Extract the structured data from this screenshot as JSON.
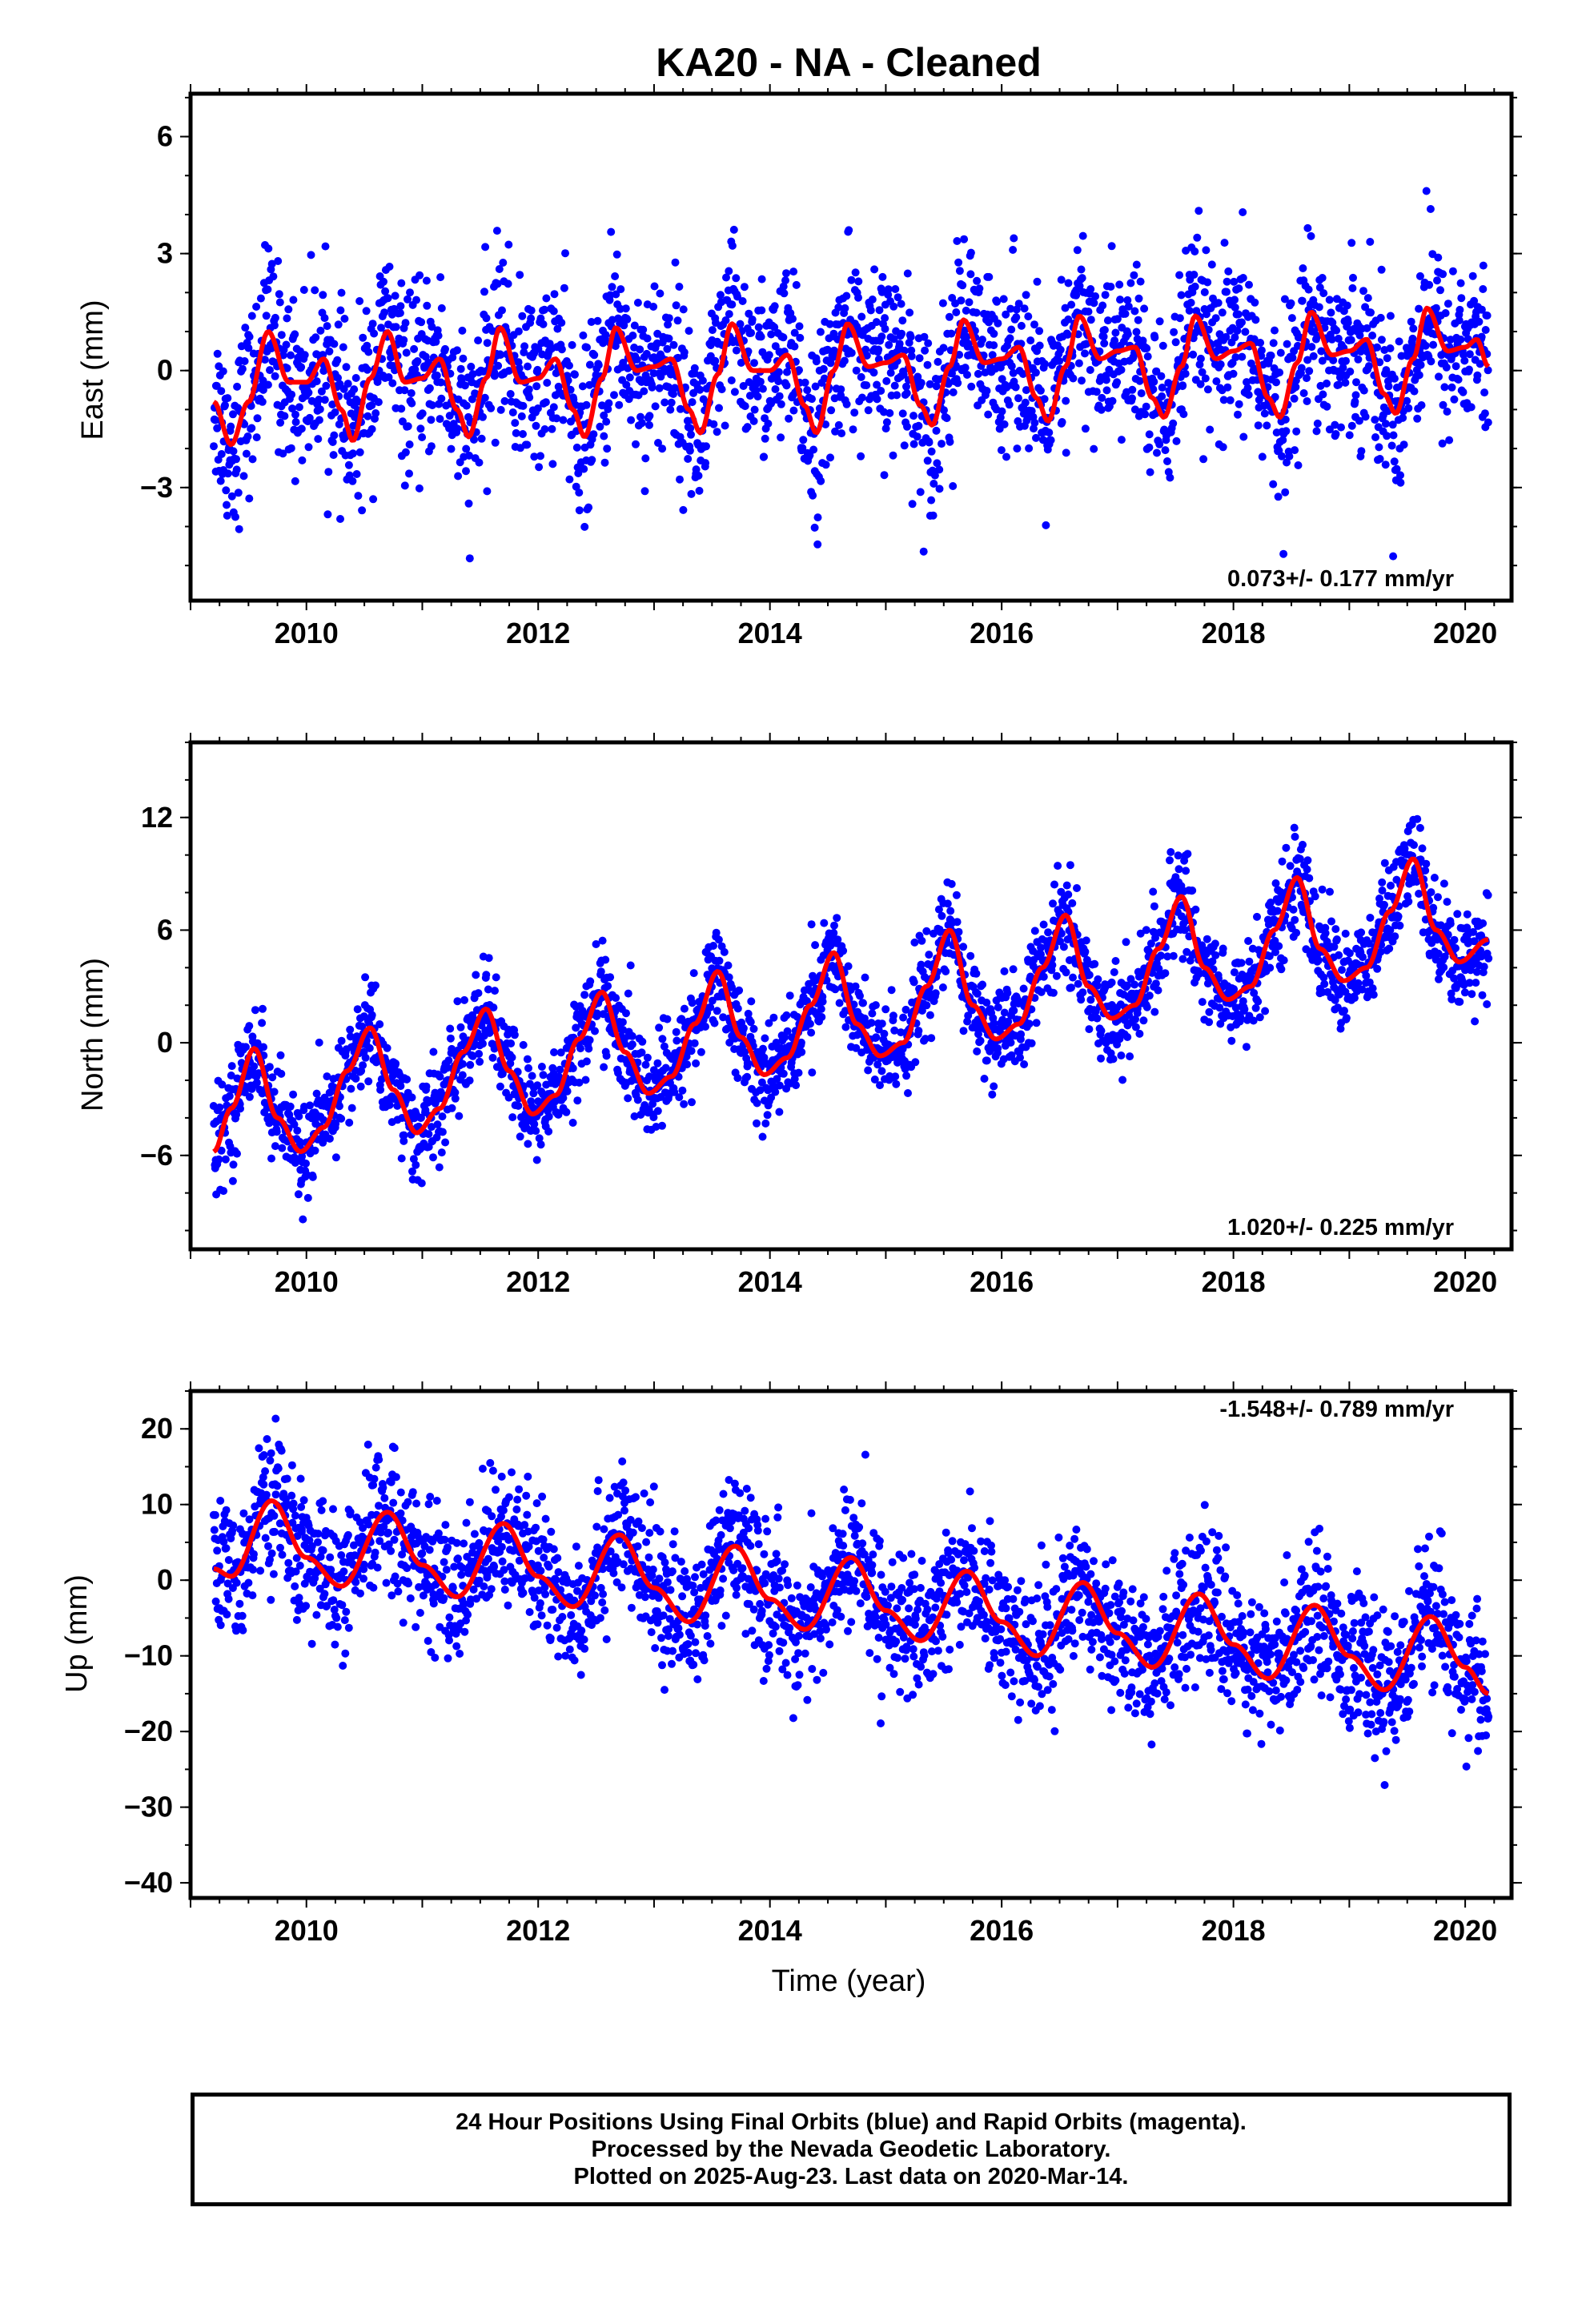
{
  "title": "KA20  - NA - Cleaned",
  "x_axis_label": "Time (year)",
  "footer": {
    "line1": "24 Hour Positions Using Final Orbits (blue) and Rapid Orbits (magenta).",
    "line2": "Processed by the Nevada Geodetic Laboratory.",
    "line3": "Plotted on 2025-Aug-23. Last data on 2020-Mar-14."
  },
  "colors": {
    "points": "#0000ff",
    "model": "#ff0000",
    "axes": "#000000"
  },
  "chart_data": [
    {
      "type": "scatter",
      "ylabel": "East (mm)",
      "rate_text": "0.073+/- 0.177 mm/yr",
      "rate_placement": "bottom-right",
      "xlim": [
        2009.0,
        2020.4
      ],
      "ylim": [
        -5.9,
        7.1
      ],
      "x_ticks": [
        2010,
        2012,
        2014,
        2016,
        2018,
        2020
      ],
      "y_ticks": [
        -3,
        0,
        3,
        6
      ],
      "grid": false,
      "series": [
        {
          "kind": "points",
          "start": 2009.2,
          "end": 2020.2,
          "trend": [
            0.0,
            0.0
          ],
          "seasonal_amp": 1.5,
          "seasonal_phase_peak": 2009.67,
          "scatter": 1.1
        },
        {
          "kind": "model",
          "knots": [
            [
              2009.2,
              -0.8
            ],
            [
              2009.35,
              -1.9
            ],
            [
              2009.5,
              -0.8
            ],
            [
              2009.67,
              1.0
            ],
            [
              2009.85,
              -0.3
            ],
            [
              2010.0,
              -0.3
            ],
            [
              2010.15,
              0.3
            ],
            [
              2010.3,
              -1.0
            ],
            [
              2010.4,
              -1.8
            ],
            [
              2010.55,
              -0.2
            ],
            [
              2010.7,
              1.0
            ],
            [
              2010.85,
              -0.3
            ],
            [
              2011.0,
              -0.2
            ],
            [
              2011.15,
              0.3
            ],
            [
              2011.3,
              -1.0
            ],
            [
              2011.4,
              -1.7
            ],
            [
              2011.55,
              -0.2
            ],
            [
              2011.67,
              1.1
            ],
            [
              2011.85,
              -0.3
            ],
            [
              2012.0,
              -0.2
            ],
            [
              2012.15,
              0.3
            ],
            [
              2012.3,
              -1.0
            ],
            [
              2012.4,
              -1.7
            ],
            [
              2012.55,
              -0.2
            ],
            [
              2012.67,
              1.1
            ],
            [
              2012.85,
              0.0
            ],
            [
              2013.0,
              0.1
            ],
            [
              2013.15,
              0.3
            ],
            [
              2013.3,
              -1.0
            ],
            [
              2013.4,
              -1.6
            ],
            [
              2013.55,
              -0.1
            ],
            [
              2013.67,
              1.2
            ],
            [
              2013.85,
              0.0
            ],
            [
              2014.0,
              0.0
            ],
            [
              2014.15,
              0.4
            ],
            [
              2014.3,
              -0.9
            ],
            [
              2014.4,
              -1.6
            ],
            [
              2014.55,
              0.0
            ],
            [
              2014.67,
              1.2
            ],
            [
              2014.85,
              0.1
            ],
            [
              2015.0,
              0.2
            ],
            [
              2015.15,
              0.4
            ],
            [
              2015.3,
              -0.9
            ],
            [
              2015.4,
              -1.4
            ],
            [
              2015.55,
              0.1
            ],
            [
              2015.67,
              1.3
            ],
            [
              2015.85,
              0.2
            ],
            [
              2016.0,
              0.3
            ],
            [
              2016.15,
              0.6
            ],
            [
              2016.3,
              -0.7
            ],
            [
              2016.4,
              -1.3
            ],
            [
              2016.55,
              0.1
            ],
            [
              2016.67,
              1.4
            ],
            [
              2016.85,
              0.3
            ],
            [
              2017.0,
              0.5
            ],
            [
              2017.15,
              0.6
            ],
            [
              2017.3,
              -0.7
            ],
            [
              2017.4,
              -1.2
            ],
            [
              2017.55,
              0.1
            ],
            [
              2017.67,
              1.4
            ],
            [
              2017.85,
              0.3
            ],
            [
              2018.0,
              0.5
            ],
            [
              2018.15,
              0.7
            ],
            [
              2018.3,
              -0.7
            ],
            [
              2018.4,
              -1.2
            ],
            [
              2018.55,
              0.2
            ],
            [
              2018.67,
              1.5
            ],
            [
              2018.85,
              0.4
            ],
            [
              2019.0,
              0.5
            ],
            [
              2019.15,
              0.8
            ],
            [
              2019.3,
              -0.6
            ],
            [
              2019.4,
              -1.1
            ],
            [
              2019.55,
              0.3
            ],
            [
              2019.67,
              1.6
            ],
            [
              2019.85,
              0.5
            ],
            [
              2020.0,
              0.6
            ],
            [
              2020.1,
              0.8
            ],
            [
              2020.2,
              0.1
            ]
          ]
        }
      ]
    },
    {
      "type": "scatter",
      "ylabel": "North (mm)",
      "rate_text": "1.020+/- 0.225 mm/yr",
      "rate_placement": "bottom-right",
      "xlim": [
        2009.0,
        2020.4
      ],
      "ylim": [
        -11.0,
        16.0
      ],
      "x_ticks": [
        2010,
        2012,
        2014,
        2016,
        2018,
        2020
      ],
      "y_ticks": [
        -6,
        0,
        6,
        12
      ],
      "grid": false,
      "series": [
        {
          "kind": "points",
          "start": 2009.2,
          "end": 2020.2,
          "trend": [
            -4.0,
            5.0
          ],
          "seasonal_amp": 2.8,
          "seasonal_phase_peak": 2009.55,
          "scatter": 1.3
        },
        {
          "kind": "model",
          "knots": [
            [
              2009.2,
              -5.8
            ],
            [
              2009.35,
              -3.5
            ],
            [
              2009.55,
              -0.3
            ],
            [
              2009.75,
              -4.0
            ],
            [
              2009.95,
              -5.8
            ],
            [
              2010.15,
              -4.5
            ],
            [
              2010.35,
              -1.5
            ],
            [
              2010.55,
              0.8
            ],
            [
              2010.75,
              -2.5
            ],
            [
              2010.95,
              -4.8
            ],
            [
              2011.15,
              -3.5
            ],
            [
              2011.35,
              -0.5
            ],
            [
              2011.55,
              1.8
            ],
            [
              2011.75,
              -1.5
            ],
            [
              2011.95,
              -3.8
            ],
            [
              2012.15,
              -2.8
            ],
            [
              2012.35,
              0.2
            ],
            [
              2012.55,
              2.7
            ],
            [
              2012.75,
              -0.5
            ],
            [
              2012.95,
              -2.7
            ],
            [
              2013.15,
              -1.8
            ],
            [
              2013.35,
              1.0
            ],
            [
              2013.55,
              3.8
            ],
            [
              2013.75,
              0.3
            ],
            [
              2013.95,
              -1.7
            ],
            [
              2014.15,
              -0.8
            ],
            [
              2014.35,
              2.0
            ],
            [
              2014.55,
              4.8
            ],
            [
              2014.75,
              1.0
            ],
            [
              2014.95,
              -0.7
            ],
            [
              2015.15,
              0.0
            ],
            [
              2015.35,
              3.0
            ],
            [
              2015.55,
              6.0
            ],
            [
              2015.75,
              2.0
            ],
            [
              2015.95,
              0.2
            ],
            [
              2016.15,
              1.0
            ],
            [
              2016.35,
              4.0
            ],
            [
              2016.55,
              6.8
            ],
            [
              2016.75,
              3.0
            ],
            [
              2016.95,
              1.3
            ],
            [
              2017.15,
              2.0
            ],
            [
              2017.35,
              5.0
            ],
            [
              2017.55,
              7.8
            ],
            [
              2017.75,
              4.0
            ],
            [
              2017.95,
              2.3
            ],
            [
              2018.15,
              3.0
            ],
            [
              2018.35,
              6.0
            ],
            [
              2018.55,
              8.8
            ],
            [
              2018.75,
              5.0
            ],
            [
              2018.95,
              3.3
            ],
            [
              2019.15,
              4.0
            ],
            [
              2019.35,
              7.0
            ],
            [
              2019.55,
              9.8
            ],
            [
              2019.75,
              6.0
            ],
            [
              2019.95,
              4.3
            ],
            [
              2020.2,
              5.5
            ]
          ]
        }
      ]
    },
    {
      "type": "scatter",
      "ylabel": "Up (mm)",
      "rate_text": "-1.548+/- 0.789 mm/yr",
      "rate_placement": "top-right",
      "xlim": [
        2009.0,
        2020.4
      ],
      "ylim": [
        -42.0,
        25.0
      ],
      "x_ticks": [
        2010,
        2012,
        2014,
        2016,
        2018,
        2020
      ],
      "y_ticks": [
        -40,
        -30,
        -20,
        -10,
        0,
        10,
        20
      ],
      "grid": false,
      "series": [
        {
          "kind": "points",
          "start": 2009.2,
          "end": 2020.2,
          "trend": [
            5.0,
            -10.0
          ],
          "seasonal_amp": 5.5,
          "seasonal_phase_peak": 2009.7,
          "scatter": 4.5
        },
        {
          "kind": "model",
          "knots": [
            [
              2009.2,
              1.5
            ],
            [
              2009.35,
              0.5
            ],
            [
              2009.7,
              10.5
            ],
            [
              2010.0,
              3.0
            ],
            [
              2010.3,
              -0.8
            ],
            [
              2010.7,
              9.0
            ],
            [
              2011.0,
              2.0
            ],
            [
              2011.3,
              -2.2
            ],
            [
              2011.7,
              7.5
            ],
            [
              2012.0,
              0.5
            ],
            [
              2012.3,
              -3.5
            ],
            [
              2012.7,
              6.0
            ],
            [
              2013.0,
              -1.0
            ],
            [
              2013.3,
              -5.5
            ],
            [
              2013.7,
              4.5
            ],
            [
              2014.0,
              -2.5
            ],
            [
              2014.3,
              -6.5
            ],
            [
              2014.7,
              3.0
            ],
            [
              2015.0,
              -4.0
            ],
            [
              2015.3,
              -8.0
            ],
            [
              2015.7,
              1.2
            ],
            [
              2016.0,
              -5.5
            ],
            [
              2016.3,
              -10.0
            ],
            [
              2016.7,
              -0.3
            ],
            [
              2017.0,
              -7.0
            ],
            [
              2017.3,
              -11.5
            ],
            [
              2017.7,
              -1.8
            ],
            [
              2018.0,
              -8.5
            ],
            [
              2018.3,
              -13.0
            ],
            [
              2018.7,
              -3.3
            ],
            [
              2019.0,
              -10.0
            ],
            [
              2019.3,
              -14.5
            ],
            [
              2019.7,
              -4.8
            ],
            [
              2020.0,
              -11.5
            ],
            [
              2020.2,
              -15.0
            ]
          ]
        }
      ]
    }
  ]
}
